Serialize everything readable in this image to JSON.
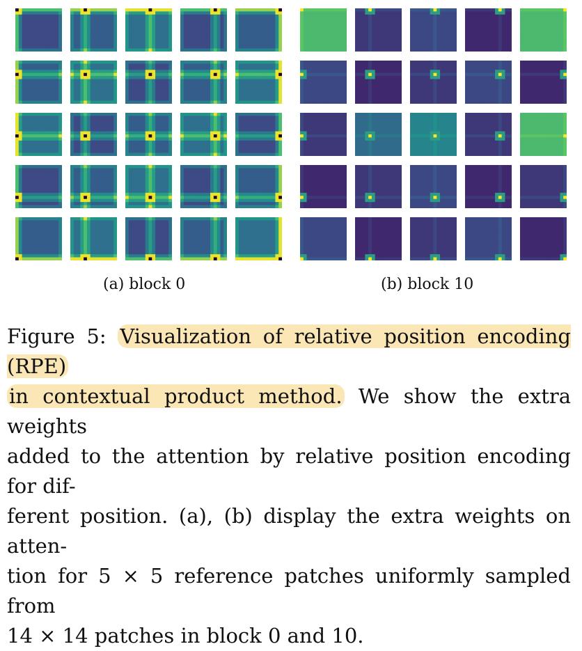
{
  "figure": {
    "panels": [
      {
        "label": "(a) block 0",
        "rows": 5,
        "cols": 5,
        "palette": [
          "#46337e",
          "#33638d",
          "#21918c",
          "#3bbb75",
          "#fde725"
        ]
      },
      {
        "label": "(b) block 10",
        "rows": 5,
        "cols": 5,
        "palette": [
          "#440154",
          "#3b528b",
          "#21918c",
          "#5ec962",
          "#fde725"
        ]
      }
    ],
    "caption": {
      "prefix": "Figure 5:",
      "highlight_1": "Visualization of relative position encoding (RPE)",
      "highlight_2": "in contextual product method.",
      "line_2_rest": "We show the extra weights",
      "line_3": "added to the attention by relative position encoding for dif-",
      "line_4": "ferent position. (a), (b) display the extra weights on atten-",
      "line_5": "tion for 5 × 5 reference patches uniformly sampled from",
      "line_6": "14 × 14 patches in block 0 and 10.",
      "highlight_color": "#fbe7b6"
    }
  }
}
